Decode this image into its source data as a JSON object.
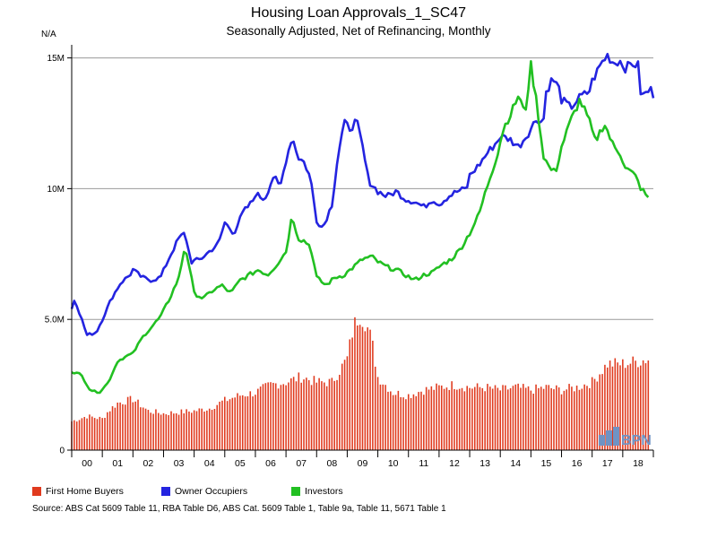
{
  "colors": {
    "first_home_buyers": "#e03a1e",
    "owner_occupiers": "#2424e0",
    "investors": "#22c022",
    "grid": "#9a9a9a",
    "axis": "#000000"
  },
  "logo_text": "BPN",
  "source": "Source: ABS Cat 5609 Table 11, RBA Table D6, ABS Cat. 5609 Table 1, Table 9a, Table 11, 5671 Table 1",
  "chart_data": {
    "type": "line",
    "title": "Housing Loan Approvals_1_SC47",
    "subtitle": "Seasonally Adjusted, Net of Refinancing, Monthly",
    "unit_label": "N/A",
    "ylim": [
      0,
      15500000
    ],
    "yticks": [
      {
        "value": 0,
        "label": "0"
      },
      {
        "value": 5000000,
        "label": "5.0M"
      },
      {
        "value": 10000000,
        "label": "10M"
      },
      {
        "value": 15000000,
        "label": "15M"
      }
    ],
    "xlim": [
      2000.0,
      2019.0
    ],
    "xticks": [
      {
        "value": 2000.5,
        "label": "00"
      },
      {
        "value": 2001.5,
        "label": "01"
      },
      {
        "value": 2002.5,
        "label": "02"
      },
      {
        "value": 2003.5,
        "label": "03"
      },
      {
        "value": 2004.5,
        "label": "04"
      },
      {
        "value": 2005.5,
        "label": "05"
      },
      {
        "value": 2006.5,
        "label": "06"
      },
      {
        "value": 2007.5,
        "label": "07"
      },
      {
        "value": 2008.5,
        "label": "08"
      },
      {
        "value": 2009.5,
        "label": "09"
      },
      {
        "value": 2010.5,
        "label": "10"
      },
      {
        "value": 2011.5,
        "label": "11"
      },
      {
        "value": 2012.5,
        "label": "12"
      },
      {
        "value": 2013.5,
        "label": "13"
      },
      {
        "value": 2014.5,
        "label": "14"
      },
      {
        "value": 2015.5,
        "label": "15"
      },
      {
        "value": 2016.5,
        "label": "16"
      },
      {
        "value": 2017.5,
        "label": "17"
      },
      {
        "value": 2018.5,
        "label": "18"
      }
    ],
    "grid": true,
    "legend_position": "bottom",
    "series": [
      {
        "name": "First Home Buyers",
        "type": "bar",
        "color_key": "first_home_buyers",
        "points": [
          [
            2000.0,
            1100000
          ],
          [
            2000.5,
            1300000
          ],
          [
            2001.0,
            1200000
          ],
          [
            2001.2,
            1500000
          ],
          [
            2001.5,
            1800000
          ],
          [
            2002.0,
            1950000
          ],
          [
            2002.5,
            1500000
          ],
          [
            2003.0,
            1400000
          ],
          [
            2003.5,
            1450000
          ],
          [
            2004.0,
            1500000
          ],
          [
            2004.5,
            1600000
          ],
          [
            2005.0,
            1900000
          ],
          [
            2005.5,
            2100000
          ],
          [
            2006.0,
            2200000
          ],
          [
            2006.5,
            2500000
          ],
          [
            2007.0,
            2600000
          ],
          [
            2007.5,
            2800000
          ],
          [
            2008.0,
            2600000
          ],
          [
            2008.5,
            2600000
          ],
          [
            2009.0,
            3500000
          ],
          [
            2009.2,
            4700000
          ],
          [
            2009.4,
            5200000
          ],
          [
            2009.6,
            4900000
          ],
          [
            2009.8,
            4200000
          ],
          [
            2010.0,
            2800000
          ],
          [
            2010.5,
            2200000
          ],
          [
            2011.0,
            2100000
          ],
          [
            2011.5,
            2300000
          ],
          [
            2012.0,
            2400000
          ],
          [
            2012.5,
            2500000
          ],
          [
            2013.0,
            2400000
          ],
          [
            2013.5,
            2400000
          ],
          [
            2014.0,
            2300000
          ],
          [
            2014.5,
            2400000
          ],
          [
            2015.0,
            2300000
          ],
          [
            2015.5,
            2400000
          ],
          [
            2016.0,
            2300000
          ],
          [
            2016.5,
            2400000
          ],
          [
            2017.0,
            2600000
          ],
          [
            2017.5,
            3300000
          ],
          [
            2018.0,
            3300000
          ],
          [
            2018.5,
            3400000
          ],
          [
            2018.9,
            3500000
          ]
        ]
      },
      {
        "name": "Owner Occupiers",
        "type": "line",
        "color_key": "owner_occupiers",
        "points": [
          [
            2000.0,
            5400000
          ],
          [
            2000.1,
            5800000
          ],
          [
            2000.5,
            4400000
          ],
          [
            2000.8,
            4500000
          ],
          [
            2001.0,
            5000000
          ],
          [
            2001.3,
            5800000
          ],
          [
            2001.6,
            6400000
          ],
          [
            2001.9,
            6700000
          ],
          [
            2002.0,
            6900000
          ],
          [
            2002.3,
            6600000
          ],
          [
            2002.6,
            6500000
          ],
          [
            2002.9,
            6600000
          ],
          [
            2003.2,
            7400000
          ],
          [
            2003.5,
            8100000
          ],
          [
            2003.7,
            8300000
          ],
          [
            2003.9,
            7200000
          ],
          [
            2004.2,
            7300000
          ],
          [
            2004.5,
            7600000
          ],
          [
            2004.8,
            7900000
          ],
          [
            2005.0,
            8700000
          ],
          [
            2005.3,
            8300000
          ],
          [
            2005.6,
            9100000
          ],
          [
            2005.9,
            9500000
          ],
          [
            2006.0,
            9800000
          ],
          [
            2006.3,
            9600000
          ],
          [
            2006.6,
            10500000
          ],
          [
            2006.8,
            10000000
          ],
          [
            2007.0,
            11100000
          ],
          [
            2007.2,
            12000000
          ],
          [
            2007.4,
            11200000
          ],
          [
            2007.6,
            11000000
          ],
          [
            2007.8,
            10400000
          ],
          [
            2008.0,
            8800000
          ],
          [
            2008.2,
            8500000
          ],
          [
            2008.5,
            9400000
          ],
          [
            2008.7,
            11300000
          ],
          [
            2008.9,
            12500000
          ],
          [
            2009.1,
            12300000
          ],
          [
            2009.3,
            12600000
          ],
          [
            2009.5,
            11600000
          ],
          [
            2009.7,
            10300000
          ],
          [
            2010.0,
            9900000
          ],
          [
            2010.3,
            9700000
          ],
          [
            2010.6,
            9900000
          ],
          [
            2010.9,
            9600000
          ],
          [
            2011.2,
            9500000
          ],
          [
            2011.5,
            9300000
          ],
          [
            2011.8,
            9600000
          ],
          [
            2012.0,
            9400000
          ],
          [
            2012.3,
            9700000
          ],
          [
            2012.6,
            9900000
          ],
          [
            2012.9,
            10000000
          ],
          [
            2013.0,
            10500000
          ],
          [
            2013.3,
            10900000
          ],
          [
            2013.6,
            11400000
          ],
          [
            2013.9,
            11800000
          ],
          [
            2014.0,
            12000000
          ],
          [
            2014.3,
            11900000
          ],
          [
            2014.6,
            11600000
          ],
          [
            2014.9,
            12100000
          ],
          [
            2015.0,
            12300000
          ],
          [
            2015.2,
            12700000
          ],
          [
            2015.4,
            12500000
          ],
          [
            2015.5,
            13700000
          ],
          [
            2015.7,
            14200000
          ],
          [
            2015.9,
            13900000
          ],
          [
            2016.0,
            13400000
          ],
          [
            2016.3,
            13100000
          ],
          [
            2016.6,
            13500000
          ],
          [
            2016.9,
            13700000
          ],
          [
            2017.0,
            14100000
          ],
          [
            2017.3,
            14800000
          ],
          [
            2017.5,
            15100000
          ],
          [
            2017.7,
            14800000
          ],
          [
            2017.9,
            14900000
          ],
          [
            2018.1,
            14600000
          ],
          [
            2018.3,
            14800000
          ],
          [
            2018.5,
            14700000
          ],
          [
            2018.6,
            13500000
          ],
          [
            2018.8,
            13700000
          ],
          [
            2018.9,
            13800000
          ],
          [
            2019.0,
            13600000
          ]
        ]
      },
      {
        "name": "Investors",
        "type": "line",
        "color_key": "investors",
        "points": [
          [
            2000.0,
            3000000
          ],
          [
            2000.3,
            2900000
          ],
          [
            2000.6,
            2300000
          ],
          [
            2000.9,
            2200000
          ],
          [
            2001.2,
            2600000
          ],
          [
            2001.5,
            3400000
          ],
          [
            2001.8,
            3600000
          ],
          [
            2002.0,
            3700000
          ],
          [
            2002.3,
            4300000
          ],
          [
            2002.6,
            4700000
          ],
          [
            2002.9,
            5100000
          ],
          [
            2003.2,
            5800000
          ],
          [
            2003.5,
            6600000
          ],
          [
            2003.7,
            7800000
          ],
          [
            2003.8,
            7300000
          ],
          [
            2004.0,
            6000000
          ],
          [
            2004.3,
            5800000
          ],
          [
            2004.6,
            6100000
          ],
          [
            2004.9,
            6300000
          ],
          [
            2005.2,
            6000000
          ],
          [
            2005.5,
            6500000
          ],
          [
            2005.8,
            6700000
          ],
          [
            2006.1,
            6900000
          ],
          [
            2006.4,
            6700000
          ],
          [
            2006.7,
            7100000
          ],
          [
            2007.0,
            7600000
          ],
          [
            2007.2,
            9000000
          ],
          [
            2007.4,
            8100000
          ],
          [
            2007.6,
            8000000
          ],
          [
            2007.8,
            7800000
          ],
          [
            2008.0,
            6600000
          ],
          [
            2008.3,
            6300000
          ],
          [
            2008.6,
            6600000
          ],
          [
            2008.9,
            6700000
          ],
          [
            2009.2,
            7000000
          ],
          [
            2009.5,
            7300000
          ],
          [
            2009.8,
            7400000
          ],
          [
            2010.0,
            7200000
          ],
          [
            2010.3,
            7000000
          ],
          [
            2010.6,
            6900000
          ],
          [
            2010.9,
            6700000
          ],
          [
            2011.2,
            6500000
          ],
          [
            2011.5,
            6700000
          ],
          [
            2011.8,
            6800000
          ],
          [
            2012.1,
            7100000
          ],
          [
            2012.4,
            7300000
          ],
          [
            2012.7,
            7700000
          ],
          [
            2013.0,
            8300000
          ],
          [
            2013.3,
            9000000
          ],
          [
            2013.6,
            10200000
          ],
          [
            2013.9,
            11300000
          ],
          [
            2014.1,
            12300000
          ],
          [
            2014.4,
            13000000
          ],
          [
            2014.6,
            13600000
          ],
          [
            2014.8,
            12800000
          ],
          [
            2015.0,
            14700000
          ],
          [
            2015.2,
            13200000
          ],
          [
            2015.4,
            11300000
          ],
          [
            2015.6,
            10800000
          ],
          [
            2015.8,
            10600000
          ],
          [
            2016.0,
            11600000
          ],
          [
            2016.3,
            12600000
          ],
          [
            2016.6,
            13400000
          ],
          [
            2016.9,
            12600000
          ],
          [
            2017.1,
            11800000
          ],
          [
            2017.4,
            12500000
          ],
          [
            2017.7,
            11600000
          ],
          [
            2017.9,
            11400000
          ],
          [
            2018.1,
            10800000
          ],
          [
            2018.4,
            10500000
          ],
          [
            2018.6,
            10000000
          ],
          [
            2018.8,
            9700000
          ],
          [
            2018.9,
            9400000
          ]
        ]
      }
    ]
  }
}
